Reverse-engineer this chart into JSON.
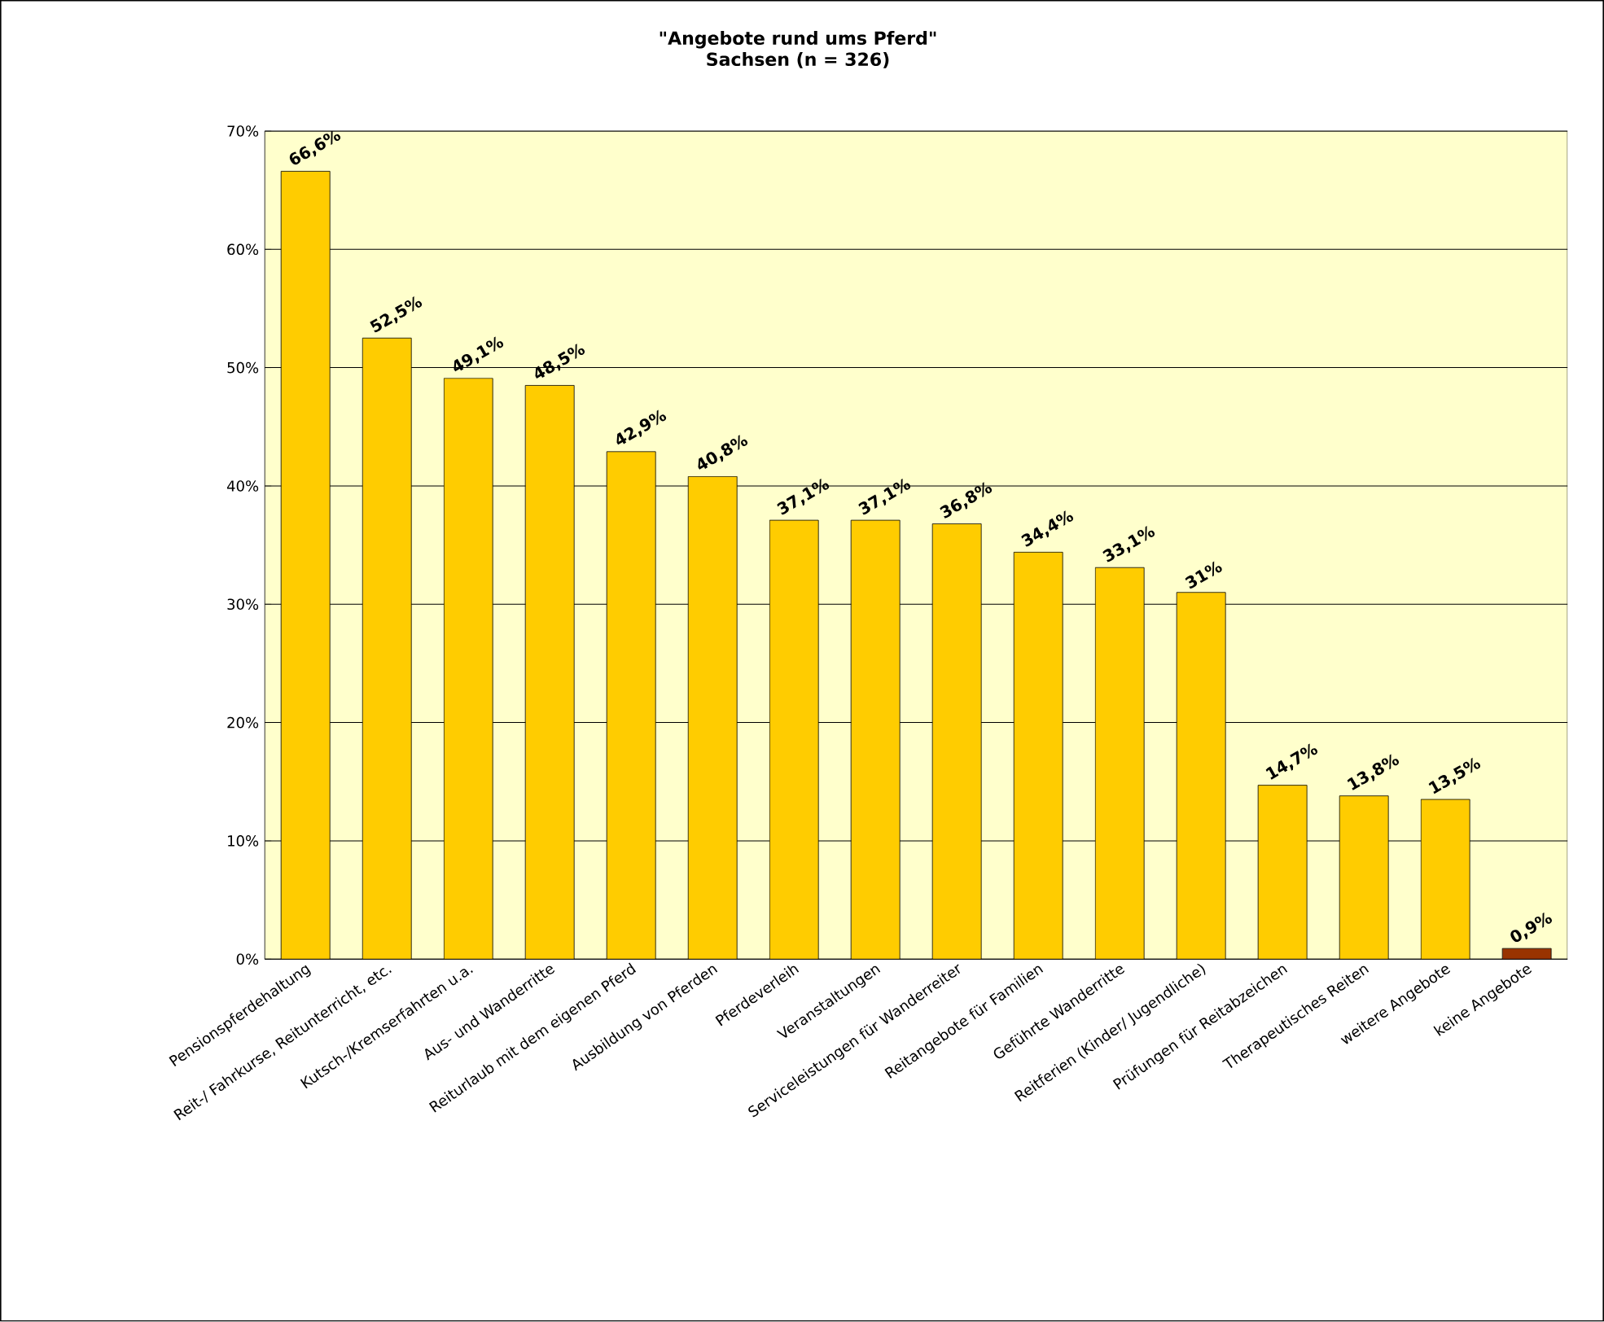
{
  "chart_data": {
    "type": "bar",
    "title": "\"Angebote rund ums Pferd\"",
    "subtitle": "Sachsen (n = 326)",
    "categories": [
      "Pensionspferdehaltung",
      "Reit-/ Fahrkurse, Reitunterricht, etc.",
      "Kutsch-/Kremserfahrten u.a.",
      "Aus- und Wanderritte",
      "Reiturlaub mit dem eigenen Pferd",
      "Ausbildung von Pferden",
      "Pferdeverleih",
      "Veranstaltungen",
      "Serviceleistungen für Wanderreiter",
      "Reitangebote für Familien",
      "Geführte Wanderritte",
      "Reitferien (Kinder/ Jugendliche)",
      "Prüfungen für Reitabzeichen",
      "Therapeutisches Reiten",
      "weitere Angebote",
      "keine Angebote"
    ],
    "values": [
      66.6,
      52.5,
      49.1,
      48.5,
      42.9,
      40.8,
      37.1,
      37.1,
      36.8,
      34.4,
      33.1,
      31,
      14.7,
      13.8,
      13.5,
      0.9
    ],
    "value_labels": [
      "66,6%",
      "52,5%",
      "49,1%",
      "48,5%",
      "42,9%",
      "40,8%",
      "37,1%",
      "37,1%",
      "36,8%",
      "34,4%",
      "33,1%",
      "31%",
      "14,7%",
      "13,8%",
      "13,5%",
      "0,9%"
    ],
    "colors": [
      "#ffcc00",
      "#ffcc00",
      "#ffcc00",
      "#ffcc00",
      "#ffcc00",
      "#ffcc00",
      "#ffcc00",
      "#ffcc00",
      "#ffcc00",
      "#ffcc00",
      "#ffcc00",
      "#ffcc00",
      "#ffcc00",
      "#ffcc00",
      "#ffcc00",
      "#993300"
    ],
    "ylim": [
      0,
      70
    ],
    "yticks": [
      {
        "value": 0,
        "label": "0%"
      },
      {
        "value": 10,
        "label": "10%"
      },
      {
        "value": 20,
        "label": "20%"
      },
      {
        "value": 30,
        "label": "30%"
      },
      {
        "value": 40,
        "label": "40%"
      },
      {
        "value": 50,
        "label": "50%"
      },
      {
        "value": 60,
        "label": "60%"
      },
      {
        "value": 70,
        "label": "70%"
      }
    ],
    "grid": "y"
  }
}
